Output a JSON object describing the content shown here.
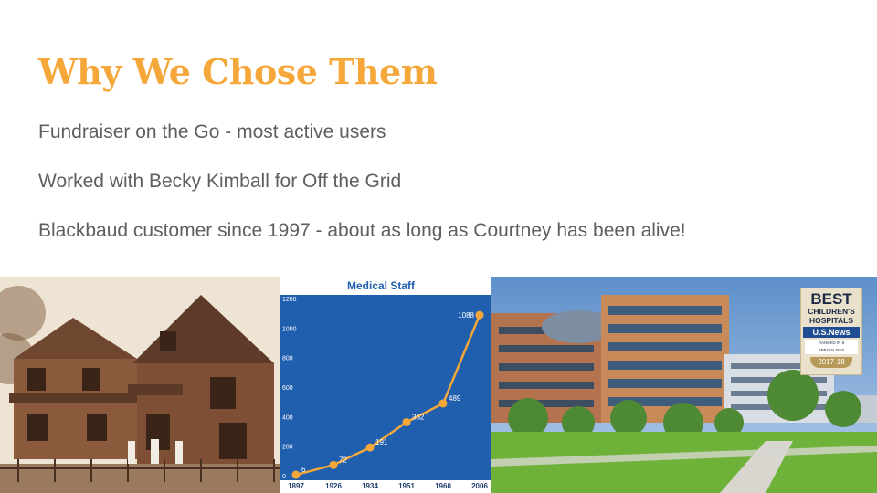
{
  "slide": {
    "title": "Why We Chose Them",
    "bullets": [
      "Fundraiser on the Go - most active users",
      "Worked with Becky Kimball for Off the Grid",
      "Blackbaud customer since 1997 - about as long as Courtney has been alive!"
    ]
  },
  "colors": {
    "title": "#f6a73a",
    "body_text": "#5f5f5f",
    "chart_bg": "#1f5fae",
    "chart_line": "#f6a73a"
  },
  "chart_data": {
    "type": "line",
    "title": "Medical Staff",
    "categories": [
      "1897",
      "1926",
      "1934",
      "1951",
      "1960",
      "2006"
    ],
    "values": [
      6,
      72,
      191,
      362,
      489,
      1088
    ],
    "data_labels": [
      "6",
      "72",
      "191",
      "362",
      "489",
      "1088"
    ],
    "yticks": [
      "0",
      "200",
      "400",
      "600",
      "800",
      "1000",
      "1200"
    ],
    "ylim": [
      0,
      1200
    ],
    "grid": false,
    "legend": false
  },
  "badge": {
    "line1": "BEST",
    "line2": "CHILDREN'S",
    "line3": "HOSPITALS",
    "brand": "U.S.News",
    "ribbon": "RANKED IN 8 SPECIALTIES",
    "year": "2017-18"
  }
}
